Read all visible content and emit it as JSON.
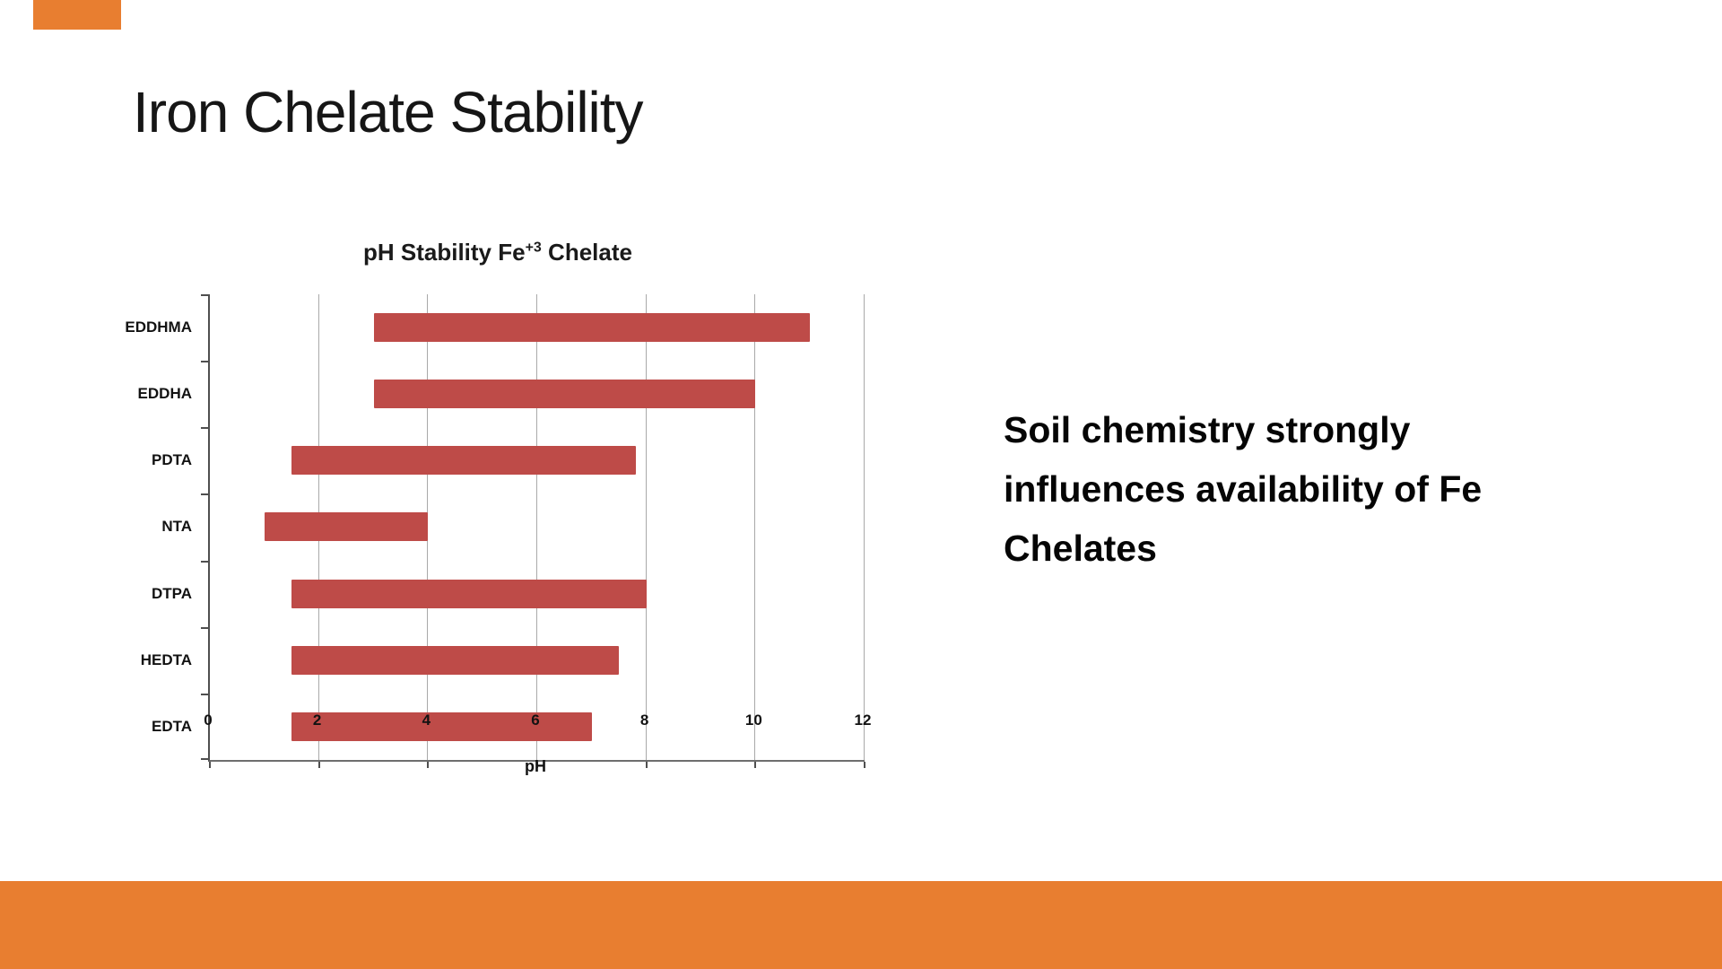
{
  "slide": {
    "title": "Iron Chelate Stability",
    "body_text": "Soil chemistry strongly influences availability of Fe Chelates"
  },
  "theme": {
    "accent_orange": "#E87E30",
    "bar_red": "#BE4B48",
    "gridline_gray": "#A9A9A9",
    "axis_gray": "#4F4F4F"
  },
  "chart_data": {
    "type": "bar",
    "orientation": "horizontal-range",
    "title": "pH Stability Fe+3 Chelate",
    "title_parts": {
      "prefix": "pH Stability Fe",
      "sup": "+3",
      "suffix": " Chelate"
    },
    "xlabel": "pH",
    "xlim": [
      0,
      12
    ],
    "x_ticks": [
      0,
      2,
      4,
      6,
      8,
      10,
      12
    ],
    "grid": true,
    "legend": false,
    "categories": [
      "EDDHMA",
      "EDDHA",
      "PDTA",
      "NTA",
      "DTPA",
      "HEDTA",
      "EDTA"
    ],
    "ranges": [
      [
        3,
        11
      ],
      [
        3,
        10
      ],
      [
        1.5,
        7.8
      ],
      [
        1,
        4
      ],
      [
        1.5,
        8
      ],
      [
        1.5,
        7.5
      ],
      [
        1.5,
        7
      ]
    ]
  }
}
